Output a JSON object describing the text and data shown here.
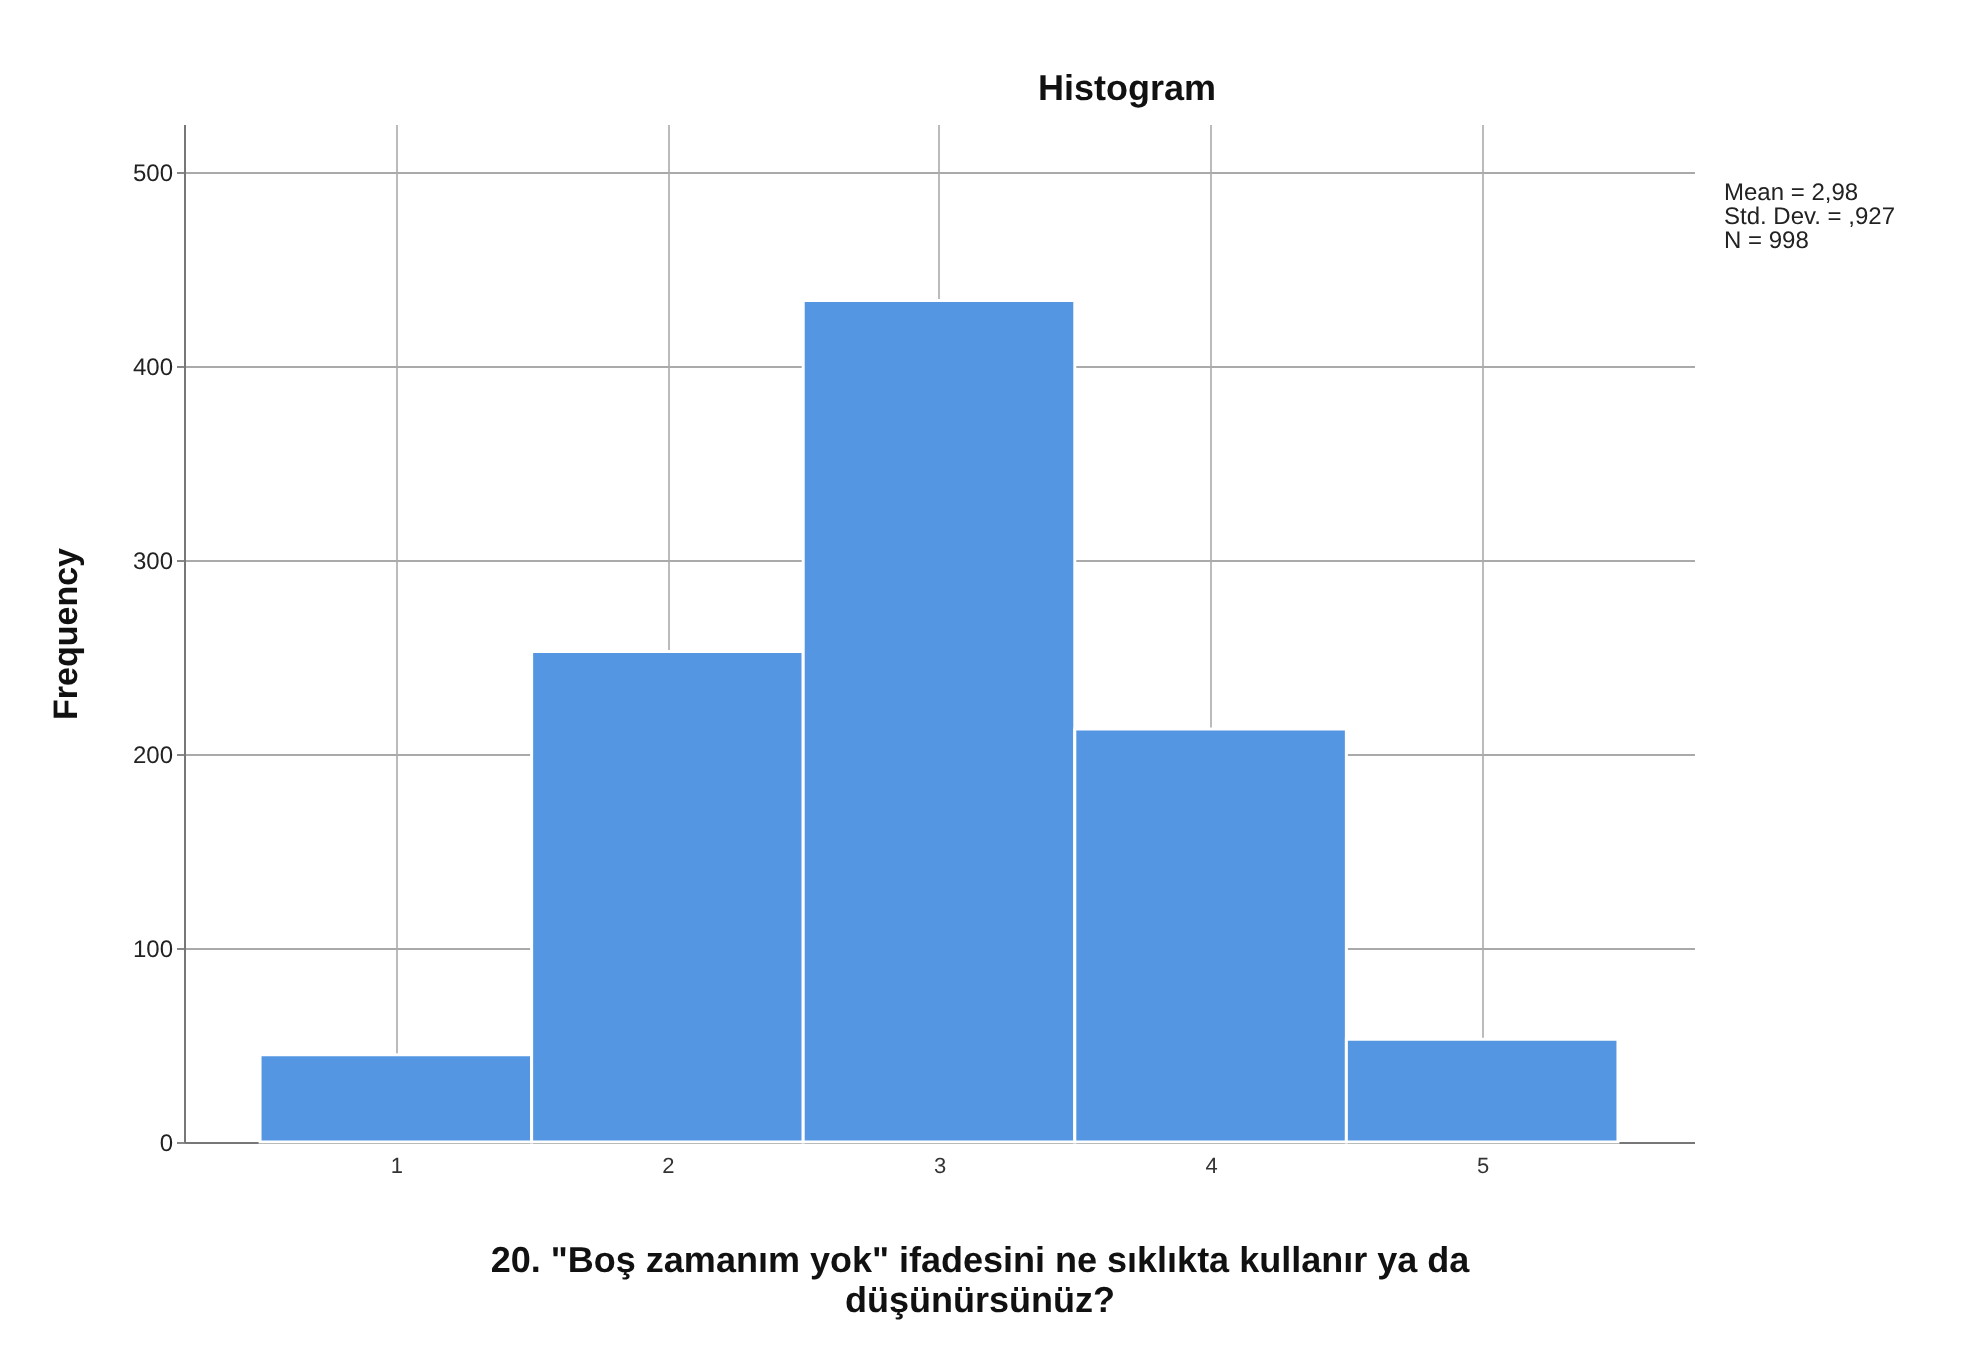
{
  "chart_data": {
    "type": "histogram",
    "title": "Histogram",
    "xlabel": "20. \"Boş zamanım yok\" ifadesini ne sıklıkta kullanır ya da düşünürsünüz?",
    "ylabel": "Frequency",
    "bins": [
      0.5,
      1.5,
      2.5,
      3.5,
      4.5,
      5.5
    ],
    "values": [
      45,
      253,
      434,
      213,
      53
    ],
    "color": "#5596e3",
    "xlim": [
      0.22,
      5.78
    ],
    "xticks": [
      1,
      2,
      3,
      4,
      5
    ],
    "ylim": [
      0,
      525
    ],
    "yticks": [
      0,
      100,
      200,
      300,
      400,
      500
    ],
    "grid": true,
    "annotations": [
      "Mean = 2,98",
      "Std. Dev. = ,927",
      "N = 998"
    ]
  }
}
